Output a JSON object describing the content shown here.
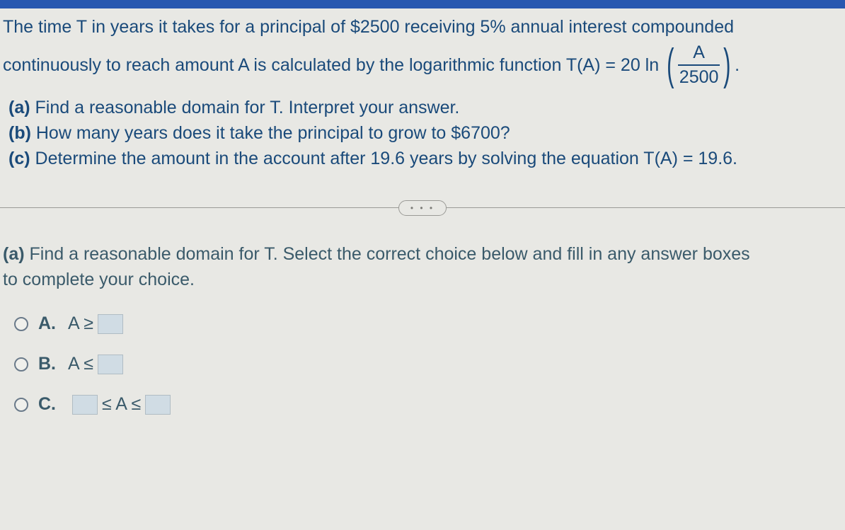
{
  "problem": {
    "line1": "The time T in years it takes for a principal of $2500 receiving 5% annual interest compounded",
    "line2_prefix": "continuously to reach amount A is calculated by the logarithmic function T(A) = 20 ln",
    "fraction_num": "A",
    "fraction_den": "2500",
    "line2_suffix": "."
  },
  "parts": {
    "a": {
      "label": "(a)",
      "text": "Find a reasonable domain for T. Interpret your answer."
    },
    "b": {
      "label": "(b)",
      "text": "How many years does it take the principal to grow to $6700?"
    },
    "c": {
      "label": "(c)",
      "text": "Determine the amount in the account after 19.6 years by solving the equation T(A) = 19.6."
    }
  },
  "divider_dots": "• • •",
  "question_a": {
    "label": "(a)",
    "text_line1": "Find a reasonable domain for T. Select the correct choice below and fill in any answer boxes",
    "text_line2": "to complete your choice."
  },
  "choices": {
    "a": {
      "label": "A.",
      "pre": "A ≥",
      "mid": "",
      "post": ""
    },
    "b": {
      "label": "B.",
      "pre": "A ≤",
      "mid": "",
      "post": ""
    },
    "c": {
      "label": "C.",
      "pre": "",
      "mid": "≤ A ≤",
      "post": ""
    }
  },
  "colors": {
    "top_bar": "#2858b0",
    "background": "#e8e8e4",
    "text_primary": "#1a4a7a",
    "text_secondary": "#3a5a6a",
    "box_bg": "#d0dce4"
  }
}
